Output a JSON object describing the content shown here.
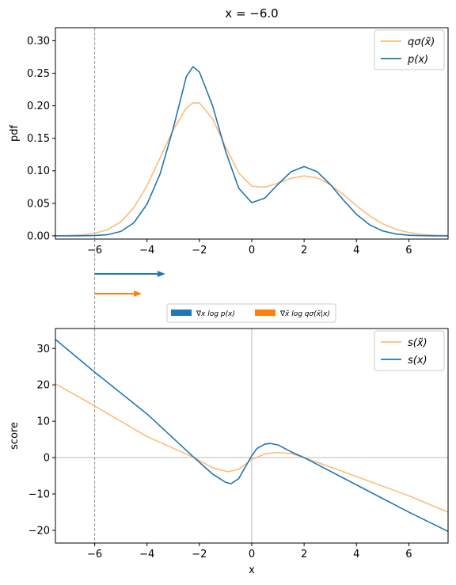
{
  "title": "x = −6.0",
  "marker_x": -6,
  "colors": {
    "p": "#1f77b4",
    "q": "#ffbb78",
    "q_arrow": "#ff7f0e",
    "zero_line": "#d0d0d0",
    "marker": "#999999"
  },
  "chart_data": [
    {
      "type": "line",
      "xlim": [
        -7.5,
        7.5
      ],
      "ylim": [
        -0.005,
        0.32
      ],
      "ylabel": "pdf",
      "xlabel": "",
      "xticks": [
        "−6",
        "−4",
        "−2",
        "0",
        "2",
        "4",
        "6"
      ],
      "yticks": [
        "0.00",
        "0.05",
        "0.10",
        "0.15",
        "0.20",
        "0.25",
        "0.30"
      ],
      "legend": {
        "position": "top-right",
        "entries": [
          "qσ(x̃)",
          "p(x)"
        ]
      },
      "series": [
        {
          "name": "qσ(x̃)",
          "color": "#ffbb78",
          "x": [
            -7.5,
            -7,
            -6.5,
            -6,
            -5.5,
            -5,
            -4.5,
            -4,
            -3.5,
            -3,
            -2.5,
            -2.25,
            -2,
            -1.5,
            -1,
            -0.5,
            0,
            0.5,
            1,
            1.5,
            2,
            2.5,
            3,
            3.5,
            4,
            4.5,
            5,
            5.5,
            6,
            6.5,
            7,
            7.5
          ],
          "y": [
            0.0001,
            0.0004,
            0.0013,
            0.0037,
            0.0095,
            0.0216,
            0.0435,
            0.0771,
            0.1198,
            0.1631,
            0.1965,
            0.2043,
            0.2045,
            0.1802,
            0.1368,
            0.0969,
            0.0764,
            0.0747,
            0.081,
            0.0885,
            0.0922,
            0.089,
            0.0787,
            0.0633,
            0.0463,
            0.0307,
            0.0185,
            0.0101,
            0.005,
            0.0022,
            0.0009,
            0.0003
          ]
        },
        {
          "name": "p(x)",
          "color": "#1f77b4",
          "x": [
            -7.5,
            -7,
            -6.5,
            -6,
            -5.5,
            -5,
            -4.5,
            -4,
            -3.5,
            -3,
            -2.5,
            -2.25,
            -2,
            -1.5,
            -1,
            -0.5,
            0,
            0.5,
            1,
            1.5,
            2,
            2.5,
            3,
            3.5,
            4,
            4.5,
            5,
            5.5,
            6,
            6.5,
            7,
            7.5
          ],
          "y": [
            0,
            0,
            0.0001,
            0.0004,
            0.0018,
            0.0067,
            0.0201,
            0.0487,
            0.0952,
            0.1652,
            0.2446,
            0.26,
            0.252,
            0.2005,
            0.1302,
            0.0733,
            0.051,
            0.058,
            0.079,
            0.0985,
            0.1065,
            0.0985,
            0.079,
            0.055,
            0.0331,
            0.017,
            0.0075,
            0.0028,
            0.0009,
            0.0002,
            0,
            0
          ]
        }
      ]
    },
    {
      "type": "line",
      "xlim": [
        -7.5,
        7.5
      ],
      "ylim": [
        -23.5,
        35.5
      ],
      "ylabel": "score",
      "xlabel": "x",
      "xticks": [
        "−6",
        "−4",
        "−2",
        "0",
        "2",
        "4",
        "6"
      ],
      "yticks": [
        "−20",
        "−10",
        "0",
        "10",
        "20",
        "30"
      ],
      "legend": {
        "position": "top-right",
        "entries": [
          "s(x̃)",
          "s(x)"
        ]
      },
      "series": [
        {
          "name": "s(x̃)",
          "color": "#ffbb78",
          "x": [
            -7.5,
            -6,
            -4,
            -2.2,
            -1.5,
            -0.9,
            -0.5,
            0,
            0.5,
            1,
            1.5,
            2,
            4,
            6,
            7.5
          ],
          "y": [
            20.3,
            14.2,
            5.8,
            0,
            -2.8,
            -3.9,
            -3.2,
            -0.5,
            1.0,
            1.4,
            1.1,
            0,
            -5.2,
            -10.5,
            -15.0
          ]
        },
        {
          "name": "s(x)",
          "color": "#1f77b4",
          "x": [
            -7.5,
            -6,
            -4,
            -2.2,
            -1.5,
            -1,
            -0.8,
            -0.5,
            -0.2,
            0,
            0.2,
            0.5,
            0.7,
            1,
            1.5,
            2,
            4,
            6,
            7.5
          ],
          "y": [
            32.5,
            23.5,
            12.0,
            0,
            -4.5,
            -6.8,
            -7.2,
            -5.8,
            -2.0,
            0.5,
            2.5,
            3.7,
            3.9,
            3.5,
            1.6,
            0,
            -7.5,
            -15.0,
            -20.3
          ]
        }
      ]
    }
  ],
  "arrows": {
    "legend": [
      "∇x log p(x)",
      "∇x̃ log qσ(x̃|x)"
    ],
    "items": [
      {
        "name": "∇x log p(x)",
        "color": "#1f77b4",
        "value": 2.7
      },
      {
        "name": "∇x̃ log qσ(x̃|x)",
        "color": "#ff7f0e",
        "value": 1.8
      }
    ]
  }
}
